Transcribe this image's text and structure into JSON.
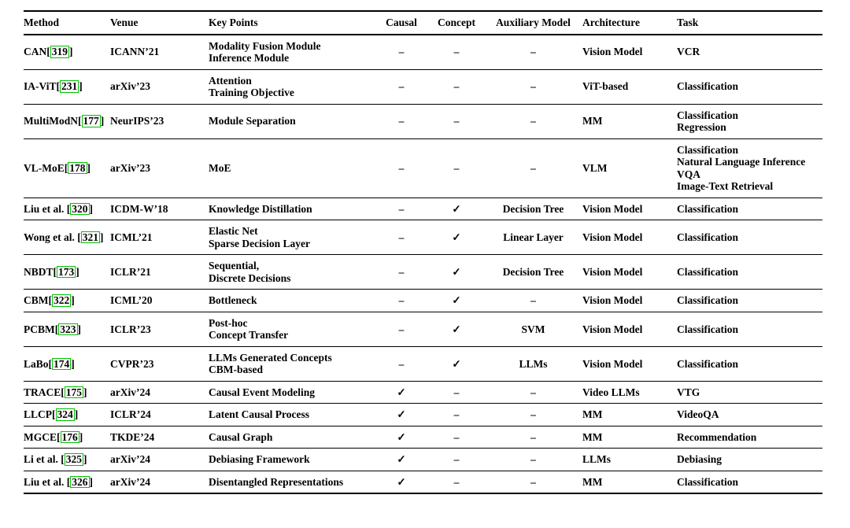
{
  "colors": {
    "citation_border": "#00c000",
    "text": "#000000",
    "background": "#ffffff"
  },
  "symbols": {
    "dash": "–",
    "check": "✓"
  },
  "table": {
    "columns": [
      "Method",
      "Venue",
      "Key Points",
      "Causal",
      "Concept",
      "Auxiliary Model",
      "Architecture",
      "Task"
    ],
    "rows": [
      {
        "method": "CAN",
        "cite": "319",
        "venue": "ICANN’21",
        "key_points": [
          "Modality Fusion Module",
          "Inference Module"
        ],
        "causal": "–",
        "concept": "–",
        "auxiliary_model": "–",
        "architecture": "Vision Model",
        "task": [
          "VCR"
        ]
      },
      {
        "method": "IA-ViT",
        "cite": "231",
        "venue": "arXiv’23",
        "key_points": [
          "Attention",
          "Training Objective"
        ],
        "causal": "–",
        "concept": "–",
        "auxiliary_model": "–",
        "architecture": "ViT-based",
        "task": [
          "Classification"
        ]
      },
      {
        "method": "MultiModN",
        "cite": "177",
        "venue": "NeurIPS’23",
        "key_points": [
          "Module Separation"
        ],
        "causal": "–",
        "concept": "–",
        "auxiliary_model": "–",
        "architecture": "MM",
        "task": [
          "Classification",
          "Regression"
        ]
      },
      {
        "method": "VL-MoE",
        "cite": "178",
        "venue": "arXiv’23",
        "key_points": [
          "MoE"
        ],
        "causal": "–",
        "concept": "–",
        "auxiliary_model": "–",
        "architecture": "VLM",
        "task": [
          "Classification",
          "Natural Language Inference",
          "VQA",
          "Image-Text Retrieval"
        ]
      },
      {
        "method": "Liu et al. ",
        "cite": "320",
        "venue": "ICDM-W’18",
        "key_points": [
          "Knowledge Distillation"
        ],
        "causal": "–",
        "concept": "✓",
        "auxiliary_model": "Decision Tree",
        "architecture": "Vision Model",
        "task": [
          "Classification"
        ]
      },
      {
        "method": "Wong et al. ",
        "cite": "321",
        "venue": "ICML’21",
        "key_points": [
          "Elastic Net",
          "Sparse Decision Layer"
        ],
        "causal": "–",
        "concept": "✓",
        "auxiliary_model": "Linear Layer",
        "architecture": "Vision Model",
        "task": [
          "Classification"
        ]
      },
      {
        "method": "NBDT",
        "cite": "173",
        "venue": "ICLR’21",
        "key_points": [
          "Sequential,",
          "Discrete Decisions"
        ],
        "causal": "–",
        "concept": "✓",
        "auxiliary_model": "Decision Tree",
        "architecture": "Vision Model",
        "task": [
          "Classification"
        ]
      },
      {
        "method": "CBM",
        "cite": "322",
        "venue": "ICML’20",
        "key_points": [
          "Bottleneck"
        ],
        "causal": "–",
        "concept": "✓",
        "auxiliary_model": "–",
        "architecture": "Vision Model",
        "task": [
          "Classification"
        ]
      },
      {
        "method": "PCBM",
        "cite": "323",
        "venue": "ICLR’23",
        "key_points": [
          "Post-hoc",
          "Concept Transfer"
        ],
        "causal": "–",
        "concept": "✓",
        "auxiliary_model": "SVM",
        "architecture": "Vision Model",
        "task": [
          "Classification"
        ]
      },
      {
        "method": "LaBo",
        "cite": "174",
        "venue": "CVPR’23",
        "key_points": [
          "LLMs Generated Concepts",
          "CBM-based"
        ],
        "causal": "–",
        "concept": "✓",
        "auxiliary_model": "LLMs",
        "architecture": "Vision Model",
        "task": [
          "Classification"
        ]
      },
      {
        "method": "TRACE",
        "cite": "175",
        "venue": "arXiv’24",
        "key_points": [
          "Causal Event Modeling"
        ],
        "causal": "✓",
        "concept": "–",
        "auxiliary_model": "–",
        "architecture": "Video LLMs",
        "task": [
          "VTG"
        ]
      },
      {
        "method": "LLCP",
        "cite": "324",
        "venue": "ICLR’24",
        "key_points": [
          "Latent Causal Process"
        ],
        "causal": "✓",
        "concept": "–",
        "auxiliary_model": "–",
        "architecture": "MM",
        "task": [
          "VideoQA"
        ]
      },
      {
        "method": "MGCE",
        "cite": "176",
        "venue": "TKDE’24",
        "key_points": [
          "Causal Graph"
        ],
        "causal": "✓",
        "concept": "–",
        "auxiliary_model": "–",
        "architecture": "MM",
        "task": [
          "Recommendation"
        ]
      },
      {
        "method": "Li et al. ",
        "cite": "325",
        "venue": "arXiv’24",
        "key_points": [
          "Debiasing Framework"
        ],
        "causal": "✓",
        "concept": "–",
        "auxiliary_model": "–",
        "architecture": "LLMs",
        "task": [
          "Debiasing"
        ]
      },
      {
        "method": "Liu et al. ",
        "cite": "326",
        "venue": "arXiv’24",
        "key_points": [
          "Disentangled Representations"
        ],
        "causal": "✓",
        "concept": "–",
        "auxiliary_model": "–",
        "architecture": "MM",
        "task": [
          "Classification"
        ]
      }
    ]
  }
}
